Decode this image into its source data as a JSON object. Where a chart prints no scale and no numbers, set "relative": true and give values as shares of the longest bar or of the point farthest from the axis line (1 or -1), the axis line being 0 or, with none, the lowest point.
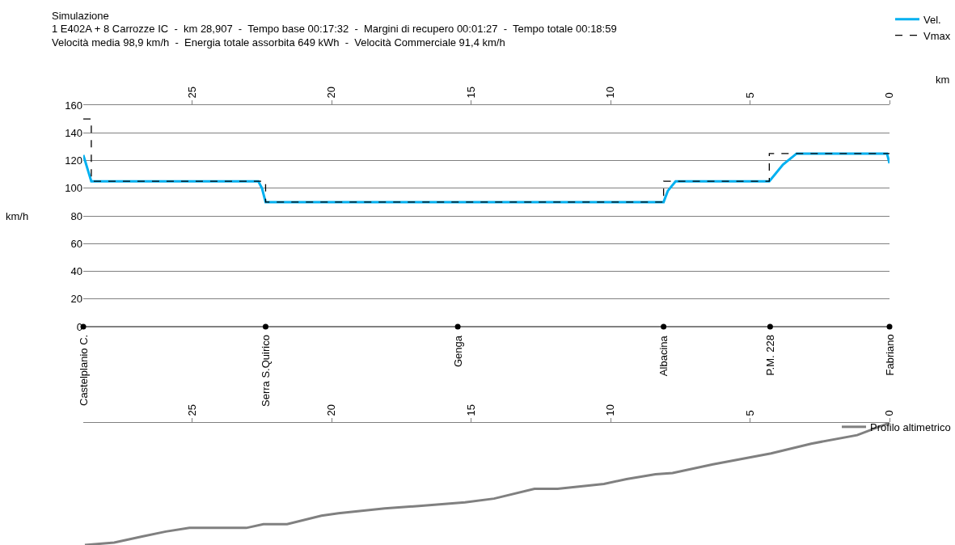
{
  "chart_data": [
    {
      "type": "line",
      "title": "Simulazione",
      "subtitle": "1 E402A + 8 Carrozze IC  -  km 28,907  -  Tempo base 00:17:32  -  Margini di recupero 00:01:27  -  Tempo totale 00:18:59\nVelocità media 98,9 km/h  -  Energia totale assorbita 649 kWh  -  Velocità Commerciale 91,4 km/h",
      "xlabel": "km",
      "ylabel": "km/h",
      "xlim": [
        28.907,
        0
      ],
      "xticks": [
        25,
        20,
        15,
        10,
        5,
        0
      ],
      "ylim": [
        0,
        160
      ],
      "yticks": [
        0,
        20,
        40,
        60,
        80,
        100,
        120,
        140,
        160
      ],
      "grid": "y",
      "legend": "top right",
      "series": [
        {
          "name": "Vel.",
          "color": "#00b0f0",
          "line_style": "solid",
          "x": [
            28.907,
            28.62,
            22.63,
            22.5,
            22.37,
            8.1,
            7.95,
            7.67,
            4.31,
            3.82,
            3.33,
            0.09,
            0
          ],
          "values": [
            124,
            105,
            105,
            100,
            90,
            90,
            98,
            105,
            105,
            117,
            125,
            125,
            118
          ]
        },
        {
          "name": "Vmax",
          "color": "#000000",
          "line_style": "dashed",
          "x": [
            28.907,
            28.907,
            28.62,
            28.62,
            22.37,
            22.37,
            8.1,
            8.1,
            4.31,
            4.31,
            0
          ],
          "values": [
            150,
            150,
            150,
            105,
            105,
            90,
            90,
            105,
            105,
            125,
            125
          ]
        },
        {
          "type": "scatter",
          "color": "#000000",
          "marker": "circle",
          "x": [
            28.907,
            22.37,
            15.48,
            8.1,
            4.28,
            0
          ],
          "values": [
            0,
            0,
            0,
            0,
            0,
            0
          ]
        }
      ],
      "annotations": [
        {
          "text": "Castelplanio C.",
          "x": 28.907,
          "y": 0
        },
        {
          "text": "Serra S.Quirico",
          "x": 22.37,
          "y": 0
        },
        {
          "text": "Genga",
          "x": 15.48,
          "y": 0
        },
        {
          "text": "Albacina",
          "x": 8.1,
          "y": 0
        },
        {
          "text": "P.M. 228",
          "x": 4.28,
          "y": 0
        },
        {
          "text": "Fabriano",
          "x": 0,
          "y": 0
        }
      ]
    },
    {
      "type": "line",
      "relative": true,
      "xlim": [
        28.907,
        0
      ],
      "xticks": [
        25,
        20,
        15,
        10,
        5,
        0
      ],
      "legend": "top right",
      "tick_labels": "x",
      "series": [
        {
          "name": "Profilo altimetrico",
          "color": "#808080",
          "x": [
            28.85,
            27.8,
            26.8,
            25.95,
            25.1,
            23.06,
            22.45,
            21.6,
            20.37,
            19.76,
            18.1,
            16.87,
            15.22,
            14.18,
            12.73,
            11.9,
            10.24,
            9.43,
            8.39,
            7.78,
            6.33,
            4.25,
            2.81,
            1.16,
            0
          ],
          "values": [
            0,
            0.02,
            0.07,
            0.11,
            0.14,
            0.14,
            0.17,
            0.17,
            0.24,
            0.26,
            0.3,
            0.32,
            0.35,
            0.38,
            0.46,
            0.46,
            0.5,
            0.54,
            0.58,
            0.59,
            0.66,
            0.75,
            0.83,
            0.9,
            1.0
          ]
        }
      ]
    }
  ]
}
